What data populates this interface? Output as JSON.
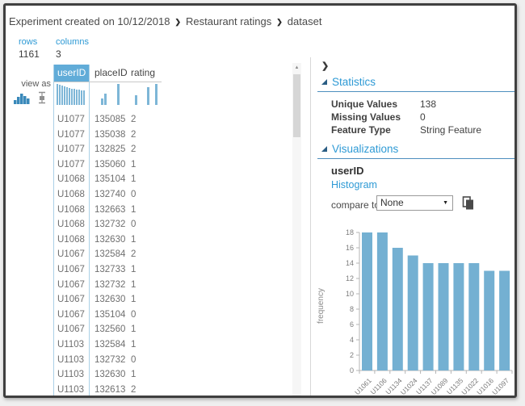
{
  "colors": {
    "accent": "#2E9AD5",
    "bar": "#74B0D2",
    "selected_header_bg": "#61ACD8",
    "section_line": "#4E8FBF"
  },
  "breadcrumb": {
    "separator": "❯",
    "items": [
      "Experiment created on 10/12/2018",
      "Restaurant ratings",
      "dataset"
    ]
  },
  "summary": {
    "rows_label": "rows",
    "rows_value": "1161",
    "columns_label": "columns",
    "columns_value": "3"
  },
  "view_as": {
    "label": "view as"
  },
  "table": {
    "columns": [
      "userID",
      "placeID",
      "rating"
    ],
    "selected_column": "userID",
    "sparklines": [
      [
        26,
        25,
        24,
        23,
        22,
        21,
        20,
        20,
        19,
        19,
        18,
        18
      ],
      [
        0,
        0,
        8,
        14,
        0,
        0,
        0,
        26
      ],
      [
        0,
        12,
        0,
        0,
        22,
        0,
        26
      ]
    ],
    "rows": [
      [
        "U1077",
        "135085",
        "2"
      ],
      [
        "U1077",
        "135038",
        "2"
      ],
      [
        "U1077",
        "132825",
        "2"
      ],
      [
        "U1077",
        "135060",
        "1"
      ],
      [
        "U1068",
        "135104",
        "1"
      ],
      [
        "U1068",
        "132740",
        "0"
      ],
      [
        "U1068",
        "132663",
        "1"
      ],
      [
        "U1068",
        "132732",
        "0"
      ],
      [
        "U1068",
        "132630",
        "1"
      ],
      [
        "U1067",
        "132584",
        "2"
      ],
      [
        "U1067",
        "132733",
        "1"
      ],
      [
        "U1067",
        "132732",
        "1"
      ],
      [
        "U1067",
        "132630",
        "1"
      ],
      [
        "U1067",
        "135104",
        "0"
      ],
      [
        "U1067",
        "132560",
        "1"
      ],
      [
        "U1103",
        "132584",
        "1"
      ],
      [
        "U1103",
        "132732",
        "0"
      ],
      [
        "U1103",
        "132630",
        "1"
      ],
      [
        "U1103",
        "132613",
        "2"
      ]
    ]
  },
  "panel": {
    "collapse_icon": "❯",
    "statistics": {
      "title": "Statistics",
      "items": [
        {
          "label": "Unique Values",
          "value": "138"
        },
        {
          "label": "Missing Values",
          "value": "0"
        },
        {
          "label": "Feature Type",
          "value": "String Feature"
        }
      ]
    },
    "visualizations": {
      "title": "Visualizations",
      "column_name": "userID",
      "chart_link": "Histogram",
      "compare_label": "compare to",
      "compare_value": "None"
    }
  },
  "chart_data": {
    "type": "bar",
    "title": "",
    "xlabel": "",
    "ylabel": "frequency",
    "categories": [
      "U1061",
      "U1106",
      "U1134",
      "U1024",
      "U1137",
      "U1089",
      "U1135",
      "U1022",
      "U1016",
      "U1097"
    ],
    "values": [
      18,
      18,
      16,
      15,
      14,
      14,
      14,
      14,
      13,
      13
    ],
    "ylim": [
      0,
      18
    ],
    "ytick_step": 2,
    "grid": false,
    "legend": "none"
  }
}
